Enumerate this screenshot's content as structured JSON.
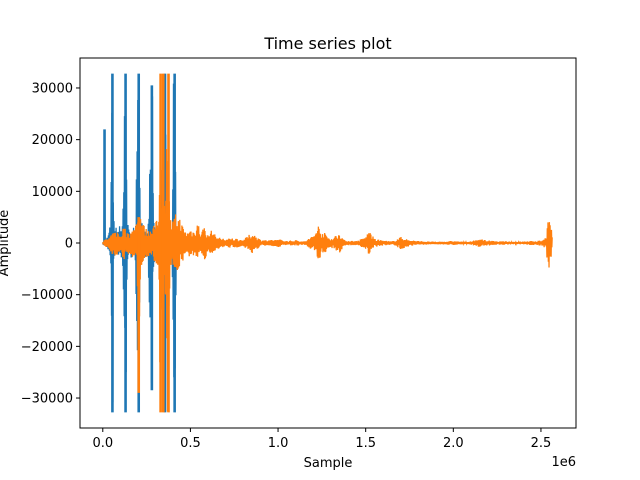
{
  "chart_data": {
    "type": "line",
    "title": "Time series plot",
    "xlabel": "Sample",
    "ylabel": "Amplitude",
    "x_offset_label": "1e6",
    "xlim": [
      -130000,
      2700000
    ],
    "ylim": [
      -35800,
      35800
    ],
    "x_ticks": [
      0,
      500000,
      1000000,
      1500000,
      2000000,
      2500000
    ],
    "x_tick_labels": [
      "0.0",
      "0.5",
      "1.0",
      "1.5",
      "2.0",
      "2.5"
    ],
    "y_ticks": [
      -30000,
      -20000,
      -10000,
      0,
      10000,
      20000,
      30000
    ],
    "y_tick_labels": [
      "−30000",
      "−20000",
      "−10000",
      "0",
      "10000",
      "20000",
      "30000"
    ],
    "grid": false,
    "series": [
      {
        "color": "#1f77b4",
        "envelope": [
          [
            0,
            -300,
            300
          ],
          [
            5000,
            -400,
            400
          ],
          [
            10000,
            -400,
            22000
          ],
          [
            15000,
            -600,
            600
          ],
          [
            30000,
            -1500,
            1500
          ],
          [
            45000,
            -3000,
            4000
          ],
          [
            55000,
            -32767,
            32767
          ],
          [
            62000,
            -5000,
            5000
          ],
          [
            80000,
            -2000,
            2500
          ],
          [
            95000,
            -4000,
            3500
          ],
          [
            110000,
            -2500,
            2500
          ],
          [
            130000,
            -32767,
            32767
          ],
          [
            140000,
            -4000,
            4000
          ],
          [
            160000,
            -3000,
            2000
          ],
          [
            185000,
            -3500,
            3500
          ],
          [
            205000,
            -32767,
            32767
          ],
          [
            215000,
            -5000,
            5000
          ],
          [
            235000,
            -3000,
            3000
          ],
          [
            255000,
            -2500,
            2500
          ],
          [
            280000,
            -28500,
            30500
          ],
          [
            290000,
            -4000,
            4000
          ],
          [
            310000,
            -3000,
            2500
          ],
          [
            330000,
            -4000,
            4000
          ],
          [
            355000,
            -32767,
            32767
          ],
          [
            365000,
            -5000,
            5000
          ],
          [
            380000,
            -2500,
            2500
          ],
          [
            395000,
            -3000,
            3000
          ],
          [
            410000,
            -32767,
            32767
          ],
          [
            420000,
            -3000,
            3000
          ],
          [
            435000,
            -1500,
            1500
          ],
          [
            450000,
            -800,
            800
          ],
          [
            470000,
            -500,
            500
          ],
          [
            500000,
            -400,
            400
          ]
        ]
      },
      {
        "color": "#ff7f0e",
        "envelope": [
          [
            0,
            -400,
            400
          ],
          [
            20000,
            -800,
            800
          ],
          [
            40000,
            -1500,
            1200
          ],
          [
            60000,
            -2500,
            2000
          ],
          [
            80000,
            -2500,
            2500
          ],
          [
            100000,
            -1500,
            1500
          ],
          [
            120000,
            -3500,
            3500
          ],
          [
            140000,
            -2000,
            2000
          ],
          [
            160000,
            -2500,
            2500
          ],
          [
            180000,
            -3000,
            3000
          ],
          [
            195000,
            -4500,
            5500
          ],
          [
            205000,
            -29000,
            5000
          ],
          [
            215000,
            -5000,
            6000
          ],
          [
            240000,
            -3000,
            3000
          ],
          [
            260000,
            -2500,
            2500
          ],
          [
            280000,
            -3500,
            3500
          ],
          [
            300000,
            -4500,
            4000
          ],
          [
            320000,
            -5000,
            5000
          ],
          [
            330000,
            -32767,
            32767
          ],
          [
            338000,
            -6000,
            6000
          ],
          [
            345000,
            -32767,
            32767
          ],
          [
            352000,
            -5000,
            6000
          ],
          [
            375000,
            -32767,
            32767
          ],
          [
            383000,
            -5000,
            5000
          ],
          [
            400000,
            -4500,
            4500
          ],
          [
            420000,
            -6000,
            6000
          ],
          [
            440000,
            -5000,
            5000
          ],
          [
            460000,
            -3500,
            3000
          ],
          [
            480000,
            -2000,
            2000
          ],
          [
            500000,
            -3000,
            3000
          ],
          [
            520000,
            -2500,
            2500
          ],
          [
            540000,
            -4500,
            4500
          ],
          [
            560000,
            -2000,
            2000
          ],
          [
            580000,
            -3500,
            3500
          ],
          [
            600000,
            -1500,
            1500
          ],
          [
            620000,
            -2500,
            2500
          ],
          [
            650000,
            -1200,
            1200
          ],
          [
            700000,
            -800,
            800
          ],
          [
            750000,
            -1000,
            1000
          ],
          [
            800000,
            -600,
            600
          ],
          [
            850000,
            -2000,
            2000
          ],
          [
            900000,
            -700,
            700
          ],
          [
            950000,
            -500,
            500
          ],
          [
            1000000,
            -800,
            800
          ],
          [
            1050000,
            -400,
            400
          ],
          [
            1100000,
            -600,
            600
          ],
          [
            1150000,
            -300,
            300
          ],
          [
            1200000,
            -1500,
            1500
          ],
          [
            1230000,
            -3500,
            3500
          ],
          [
            1250000,
            -2500,
            2500
          ],
          [
            1280000,
            -1500,
            1500
          ],
          [
            1300000,
            -800,
            800
          ],
          [
            1350000,
            -2000,
            2000
          ],
          [
            1380000,
            -500,
            500
          ],
          [
            1450000,
            -400,
            400
          ],
          [
            1500000,
            -1200,
            1200
          ],
          [
            1520000,
            -2500,
            2500
          ],
          [
            1550000,
            -800,
            800
          ],
          [
            1600000,
            -500,
            500
          ],
          [
            1650000,
            -300,
            300
          ],
          [
            1700000,
            -1200,
            1200
          ],
          [
            1750000,
            -600,
            600
          ],
          [
            1800000,
            -400,
            400
          ],
          [
            1850000,
            -300,
            300
          ],
          [
            1900000,
            -250,
            250
          ],
          [
            1950000,
            -300,
            300
          ],
          [
            2000000,
            -400,
            400
          ],
          [
            2050000,
            -250,
            250
          ],
          [
            2100000,
            -300,
            300
          ],
          [
            2150000,
            -800,
            800
          ],
          [
            2200000,
            -500,
            500
          ],
          [
            2250000,
            -300,
            300
          ],
          [
            2300000,
            -350,
            350
          ],
          [
            2350000,
            -250,
            250
          ],
          [
            2400000,
            -300,
            300
          ],
          [
            2450000,
            -400,
            400
          ],
          [
            2500000,
            -500,
            500
          ],
          [
            2530000,
            -1200,
            1200
          ],
          [
            2540000,
            -6000,
            5000
          ],
          [
            2550000,
            -4500,
            4500
          ],
          [
            2560000,
            -3000,
            3000
          ],
          [
            2565000,
            -1000,
            1000
          ]
        ]
      }
    ]
  }
}
